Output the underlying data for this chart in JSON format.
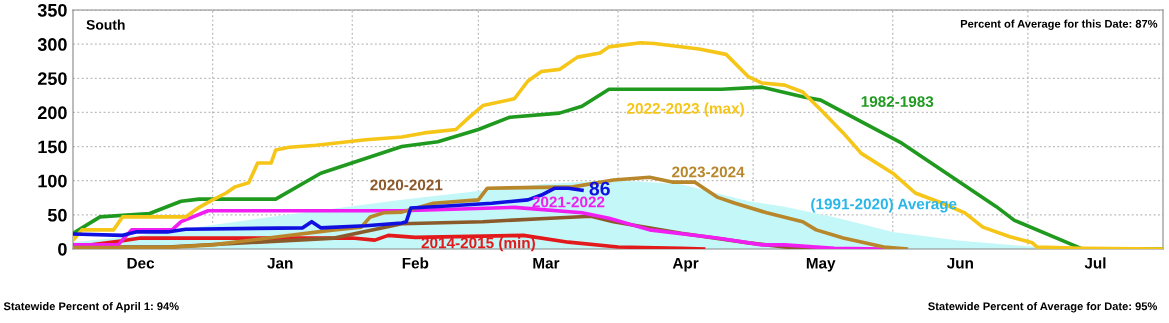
{
  "chart_data": {
    "type": "line",
    "title": "South",
    "subtitle": "Percent of Average for this Date: 87%",
    "annotations": [
      "Statewide Percent of April 1: 94%",
      "Statewide Percent of Average for Date: 95%",
      {
        "text": "86",
        "x": "2025-03-24",
        "y": 86
      }
    ],
    "xlim": [
      "2024-12-01",
      "2025-07-31"
    ],
    "xticks": [
      {
        "value": "2024-12-16",
        "label": "Dec"
      },
      {
        "value": "2025-01-01",
        "label": null
      },
      {
        "value": "2025-01-16",
        "label": "Jan"
      },
      {
        "value": "2025-02-01",
        "label": null
      },
      {
        "value": "2025-02-15",
        "label": "Feb"
      },
      {
        "value": "2025-03-01",
        "label": null
      },
      {
        "value": "2025-03-16",
        "label": "Mar"
      },
      {
        "value": "2025-04-01",
        "label": null
      },
      {
        "value": "2025-04-16",
        "label": "Apr"
      },
      {
        "value": "2025-05-01",
        "label": null
      },
      {
        "value": "2025-05-16",
        "label": "May"
      },
      {
        "value": "2025-06-01",
        "label": null
      },
      {
        "value": "2025-06-16",
        "label": "Jun"
      },
      {
        "value": "2025-07-01",
        "label": null
      },
      {
        "value": "2025-07-16",
        "label": "Jul"
      }
    ],
    "ylim": [
      0,
      350
    ],
    "yticks": [
      0,
      50,
      100,
      150,
      200,
      250,
      300,
      350
    ],
    "grid": true,
    "legend": false,
    "marker": "none",
    "line_style": "solid",
    "series": [
      {
        "name": "(1991-2020) Average",
        "type": "area",
        "color": "#c4f7f7",
        "x": [
          "2024-12-01",
          "2024-12-16",
          "2025-01-01",
          "2025-01-15",
          "2025-01-29",
          "2025-02-12",
          "2025-03-01",
          "2025-03-15",
          "2025-03-31",
          "2025-04-15",
          "2025-04-30",
          "2025-05-08",
          "2025-05-20",
          "2025-06-01",
          "2025-06-16",
          "2025-07-01",
          "2025-07-19",
          "2025-07-31"
        ],
        "values": [
          10,
          20,
          35,
          48,
          60,
          72,
          85,
          95,
          101,
          95,
          70,
          62,
          45,
          25,
          12,
          4,
          0,
          0
        ]
      },
      {
        "name": "2014-2015 (min)",
        "color": "#e31a1c",
        "x": [
          "2024-12-01",
          "2024-12-12",
          "2024-12-16",
          "2025-02-01",
          "2025-02-06",
          "2025-02-09",
          "2025-02-15",
          "2025-03-11",
          "2025-03-21",
          "2025-04-01",
          "2025-04-15",
          "2025-04-20"
        ],
        "values": [
          3,
          12,
          16,
          16,
          13,
          20,
          17,
          20,
          10,
          3,
          1,
          0
        ]
      },
      {
        "name": "2020-2021",
        "color": "#8b5a2b",
        "x": [
          "2024-12-01",
          "2024-12-22",
          "2025-01-28",
          "2025-02-12",
          "2025-03-02",
          "2025-03-17",
          "2025-03-26",
          "2025-03-31",
          "2025-04-15",
          "2025-04-30",
          "2025-05-08",
          "2025-05-15"
        ],
        "values": [
          3,
          3,
          16,
          37,
          40,
          45,
          48,
          40,
          23,
          9,
          3,
          0
        ]
      },
      {
        "name": "2021-2022",
        "color": "#f01ef0",
        "x": [
          "2024-12-01",
          "2024-12-11",
          "2024-12-14",
          "2024-12-23",
          "2024-12-25",
          "2024-12-31",
          "2025-02-12",
          "2025-03-09",
          "2025-03-24",
          "2025-03-30",
          "2025-04-08",
          "2025-04-23",
          "2025-05-03",
          "2025-05-08",
          "2025-05-19",
          "2025-05-30"
        ],
        "values": [
          6,
          6,
          28,
          28,
          40,
          56,
          56,
          61,
          53,
          45,
          28,
          16,
          6,
          6,
          1,
          0
        ]
      },
      {
        "name": "2023-2024",
        "color": "#b8862b",
        "x": [
          "2024-12-01",
          "2024-12-21",
          "2025-01-01",
          "2025-01-28",
          "2025-02-03",
          "2025-02-05",
          "2025-02-08",
          "2025-02-12",
          "2025-02-19",
          "2025-03-01",
          "2025-03-03",
          "2025-03-22",
          "2025-03-31",
          "2025-04-08",
          "2025-04-13",
          "2025-04-18",
          "2025-04-23",
          "2025-04-27",
          "2025-05-04",
          "2025-05-12",
          "2025-05-15",
          "2025-05-21",
          "2025-05-30",
          "2025-06-04"
        ],
        "values": [
          2,
          2,
          6,
          28,
          32,
          47,
          53,
          54,
          67,
          72,
          89,
          91,
          101,
          105,
          98,
          98,
          76,
          67,
          53,
          40,
          28,
          16,
          3,
          0
        ]
      },
      {
        "name": "1982-1983",
        "color": "#1f9a1f",
        "x": [
          "2024-12-01",
          "2024-12-07",
          "2024-12-18",
          "2024-12-25",
          "2024-12-29",
          "2025-01-15",
          "2025-01-25",
          "2025-02-12",
          "2025-02-20",
          "2025-03-01",
          "2025-03-08",
          "2025-03-19",
          "2025-03-24",
          "2025-03-30",
          "2025-04-24",
          "2025-05-03",
          "2025-05-12",
          "2025-05-16",
          "2025-06-03",
          "2025-06-24",
          "2025-06-28",
          "2025-07-12",
          "2025-07-13",
          "2025-07-31"
        ],
        "values": [
          23,
          47,
          52,
          70,
          73,
          73,
          111,
          150,
          157,
          175,
          193,
          199,
          209,
          234,
          234,
          237,
          223,
          218,
          155,
          62,
          42,
          3,
          0,
          0
        ]
      },
      {
        "name": "2022-2023 (max)",
        "color": "#f5c518",
        "x": [
          "2024-12-01",
          "2024-12-03",
          "2024-12-10",
          "2024-12-12",
          "2024-12-26",
          "2024-12-29",
          "2025-01-01",
          "2025-01-04",
          "2025-01-06",
          "2025-01-09",
          "2025-01-11",
          "2025-01-14",
          "2025-01-15",
          "2025-01-18",
          "2025-01-24",
          "2025-02-04",
          "2025-02-12",
          "2025-02-17",
          "2025-02-24",
          "2025-02-27",
          "2025-03-02",
          "2025-03-09",
          "2025-03-12",
          "2025-03-15",
          "2025-03-19",
          "2025-03-23",
          "2025-03-28",
          "2025-03-30",
          "2025-04-06",
          "2025-04-09",
          "2025-04-19",
          "2025-04-25",
          "2025-04-30",
          "2025-05-03",
          "2025-05-08",
          "2025-05-12",
          "2025-05-16",
          "2025-05-21",
          "2025-05-25",
          "2025-06-01",
          "2025-06-06",
          "2025-06-12",
          "2025-06-17",
          "2025-06-21",
          "2025-06-27",
          "2025-07-02",
          "2025-07-03",
          "2025-07-13",
          "2025-07-31"
        ],
        "values": [
          13,
          28,
          28,
          47,
          47,
          61,
          72,
          82,
          91,
          97,
          126,
          126,
          145,
          149,
          152,
          160,
          164,
          170,
          175,
          193,
          210,
          220,
          246,
          260,
          263,
          281,
          287,
          296,
          302,
          301,
          293,
          285,
          252,
          243,
          240,
          230,
          204,
          170,
          140,
          111,
          82,
          67,
          53,
          32,
          18,
          9,
          3,
          1,
          0
        ]
      },
      {
        "color": "#1010e0",
        "x": [
          "2024-12-01",
          "2024-12-12",
          "2024-12-15",
          "2024-12-22",
          "2024-12-26",
          "2025-01-21",
          "2025-01-23",
          "2025-01-25",
          "2025-02-04",
          "2025-02-12",
          "2025-02-13",
          "2025-02-14",
          "2025-02-22",
          "2025-03-04",
          "2025-03-12",
          "2025-03-15",
          "2025-03-18",
          "2025-03-21",
          "2025-03-24"
        ],
        "values": [
          22,
          20,
          25,
          25,
          29,
          31,
          40,
          31,
          34,
          38,
          40,
          60,
          63,
          67,
          72,
          79,
          89,
          89,
          86
        ]
      }
    ]
  }
}
